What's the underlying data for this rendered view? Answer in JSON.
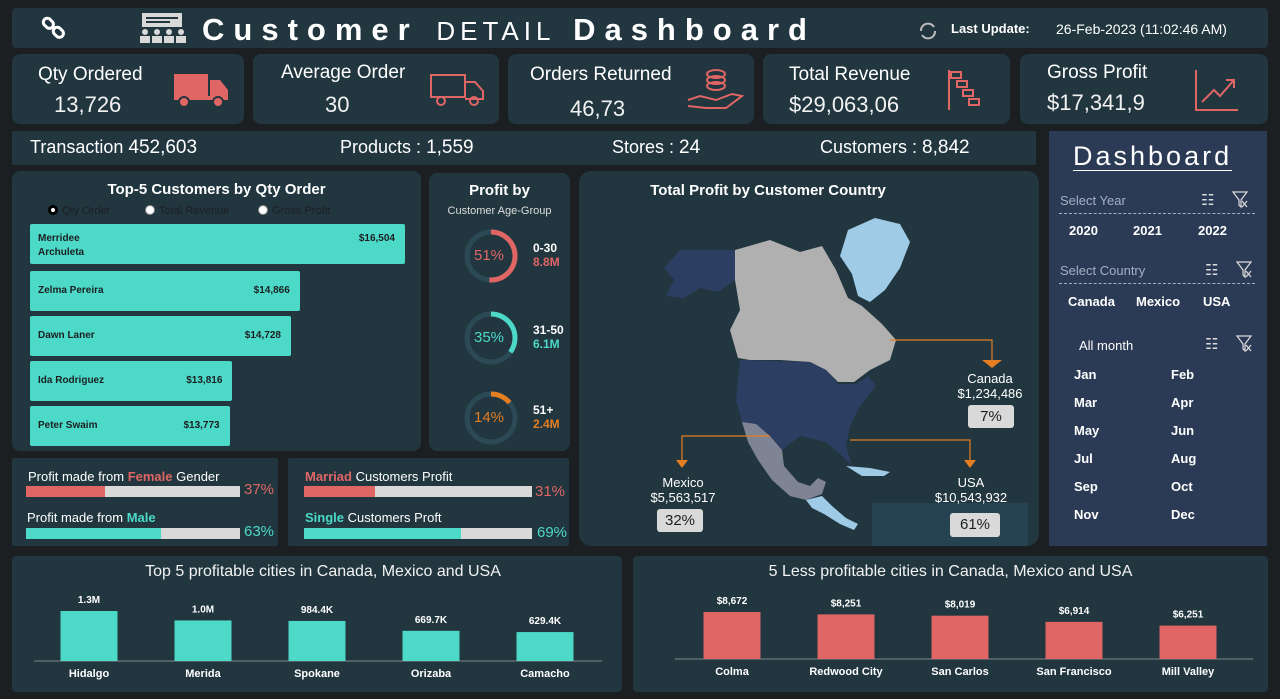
{
  "header": {
    "title_a": "Customer",
    "title_b": "Detail",
    "title_c": "Dashboard",
    "last_update_label": "Last Update:",
    "last_update_value": "26-Feb-2023 (11:02:46 AM)"
  },
  "kpis": [
    {
      "label": "Qty Ordered",
      "value": "13,726",
      "icon": "truck-icon"
    },
    {
      "label": "Average Order",
      "value": "30",
      "icon": "delivery-truck-icon"
    },
    {
      "label": "Orders Returned",
      "value": "46,73",
      "icon": "coins-hand-icon"
    },
    {
      "label": "Total Revenue",
      "value": "$29,063,06",
      "icon": "gantt-icon"
    },
    {
      "label": "Gross Profit",
      "value": "$17,341,9",
      "icon": "trend-up-icon"
    }
  ],
  "stats": {
    "transaction_label": "Transaction",
    "transaction_value": "452,603",
    "products_label": "Products :",
    "products_value": "1,559",
    "stores_label": "Stores :",
    "stores_value": "24",
    "customers_label": "Customers :",
    "customers_value": "8,842"
  },
  "top_customers": {
    "title": "Top-5 Customers by Qty Order",
    "options": [
      "Qty Order",
      "Total Revenue",
      "Gross Profit"
    ],
    "rows": [
      {
        "name": "Merridee Archuleta",
        "value": "$16,504",
        "amount": 16504
      },
      {
        "name": "Zelma Pereira",
        "value": "$14,866",
        "amount": 14866
      },
      {
        "name": "Dawn Laner",
        "value": "$14,728",
        "amount": 14728
      },
      {
        "name": "Ida Rodriguez",
        "value": "$13,816",
        "amount": 13816
      },
      {
        "name": "Peter Swaim",
        "value": "$13,773",
        "amount": 13773
      }
    ]
  },
  "profit_age": {
    "title": "Profit by",
    "subtitle": "Customer Age-Group",
    "groups": [
      {
        "pct": "51%",
        "range": "0-30",
        "amount": "8.8M",
        "color": "#e06666",
        "fraction": 0.51
      },
      {
        "pct": "35%",
        "range": "31-50",
        "amount": "6.1M",
        "color": "#4dd9c7",
        "fraction": 0.35
      },
      {
        "pct": "14%",
        "range": "51+",
        "amount": "2.4M",
        "color": "#e67e22",
        "fraction": 0.14
      }
    ]
  },
  "gender": {
    "female_prefix": "Profit made from ",
    "female_word": "Female",
    "female_suffix": " Gender",
    "female_pct": "37%",
    "female_fraction": 0.37,
    "male_prefix": "Profit made from ",
    "male_word": "Male",
    "male_pct": "63%",
    "male_fraction": 0.63
  },
  "marital": {
    "married_word": "Marriad",
    "married_suffix": " Customers Profit",
    "married_pct": "31%",
    "married_fraction": 0.31,
    "single_word": "Single",
    "single_suffix": " Customers Proft",
    "single_pct": "69%",
    "single_fraction": 0.69
  },
  "map": {
    "title": "Total Profit by Customer Country",
    "countries": [
      {
        "name": "Canada",
        "value": "$1,234,486",
        "pct": "7%"
      },
      {
        "name": "Mexico",
        "value": "$5,563,517",
        "pct": "32%"
      },
      {
        "name": "USA",
        "value": "$10,543,932",
        "pct": "61%"
      }
    ]
  },
  "sidebar": {
    "title": "Dashboard",
    "year_label": "Select Year",
    "years": [
      "2020",
      "2021",
      "2022"
    ],
    "country_label": "Select Country",
    "countries": [
      "Canada",
      "Mexico",
      "USA"
    ],
    "month_label": "All month",
    "months": [
      "Jan",
      "Feb",
      "Mar",
      "Apr",
      "May",
      "Jun",
      "Jul",
      "Aug",
      "Sep",
      "Oct",
      "Nov",
      "Dec"
    ]
  },
  "chart_data": [
    {
      "type": "bar",
      "title": "Top 5 profitable cities in Canada, Mexico and  USA",
      "categories": [
        "Hidalgo",
        "Merida",
        "Spokane",
        "Orizaba",
        "Camacho"
      ],
      "values": [
        1300000,
        1000000,
        984400,
        669700,
        629400
      ],
      "labels": [
        "1.3M",
        "1.0M",
        "984.4K",
        "669.7K",
        "629.4K"
      ],
      "color": "#4dd9c7"
    },
    {
      "type": "bar",
      "title": "5 Less profitable cities in Canada, Mexico and  USA",
      "categories": [
        "Colma",
        "Redwood City",
        "San Carlos",
        "San Francisco",
        "Mill Valley"
      ],
      "values": [
        8672,
        8251,
        8019,
        6914,
        6251
      ],
      "labels": [
        "$8,672",
        "$8,251",
        "$8,019",
        "$6,914",
        "$6,251"
      ],
      "color": "#e06666"
    }
  ]
}
